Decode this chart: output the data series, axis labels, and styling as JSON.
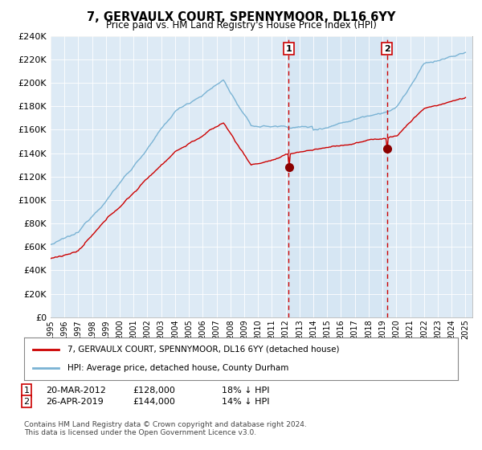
{
  "title": "7, GERVAULX COURT, SPENNYMOOR, DL16 6YY",
  "subtitle": "Price paid vs. HM Land Registry's House Price Index (HPI)",
  "legend_line1": "7, GERVAULX COURT, SPENNYMOOR, DL16 6YY (detached house)",
  "legend_line2": "HPI: Average price, detached house, County Durham",
  "annotation1_date": "20-MAR-2012",
  "annotation1_price": "£128,000",
  "annotation1_pct": "18% ↓ HPI",
  "annotation2_date": "26-APR-2019",
  "annotation2_price": "£144,000",
  "annotation2_pct": "14% ↓ HPI",
  "footnote": "Contains HM Land Registry data © Crown copyright and database right 2024.\nThis data is licensed under the Open Government Licence v3.0.",
  "hpi_color": "#7ab3d4",
  "price_color": "#cc0000",
  "marker_color": "#8b0000",
  "vline_color": "#cc0000",
  "bg_color": "#ddeaf5",
  "ylim_min": 0,
  "ylim_max": 240000,
  "ytick_step": 20000,
  "sale1_year": 2012.22,
  "sale1_value": 128000,
  "sale1_hpi": 156000,
  "sale2_year": 2019.32,
  "sale2_value": 144000,
  "sale2_hpi": 168000
}
